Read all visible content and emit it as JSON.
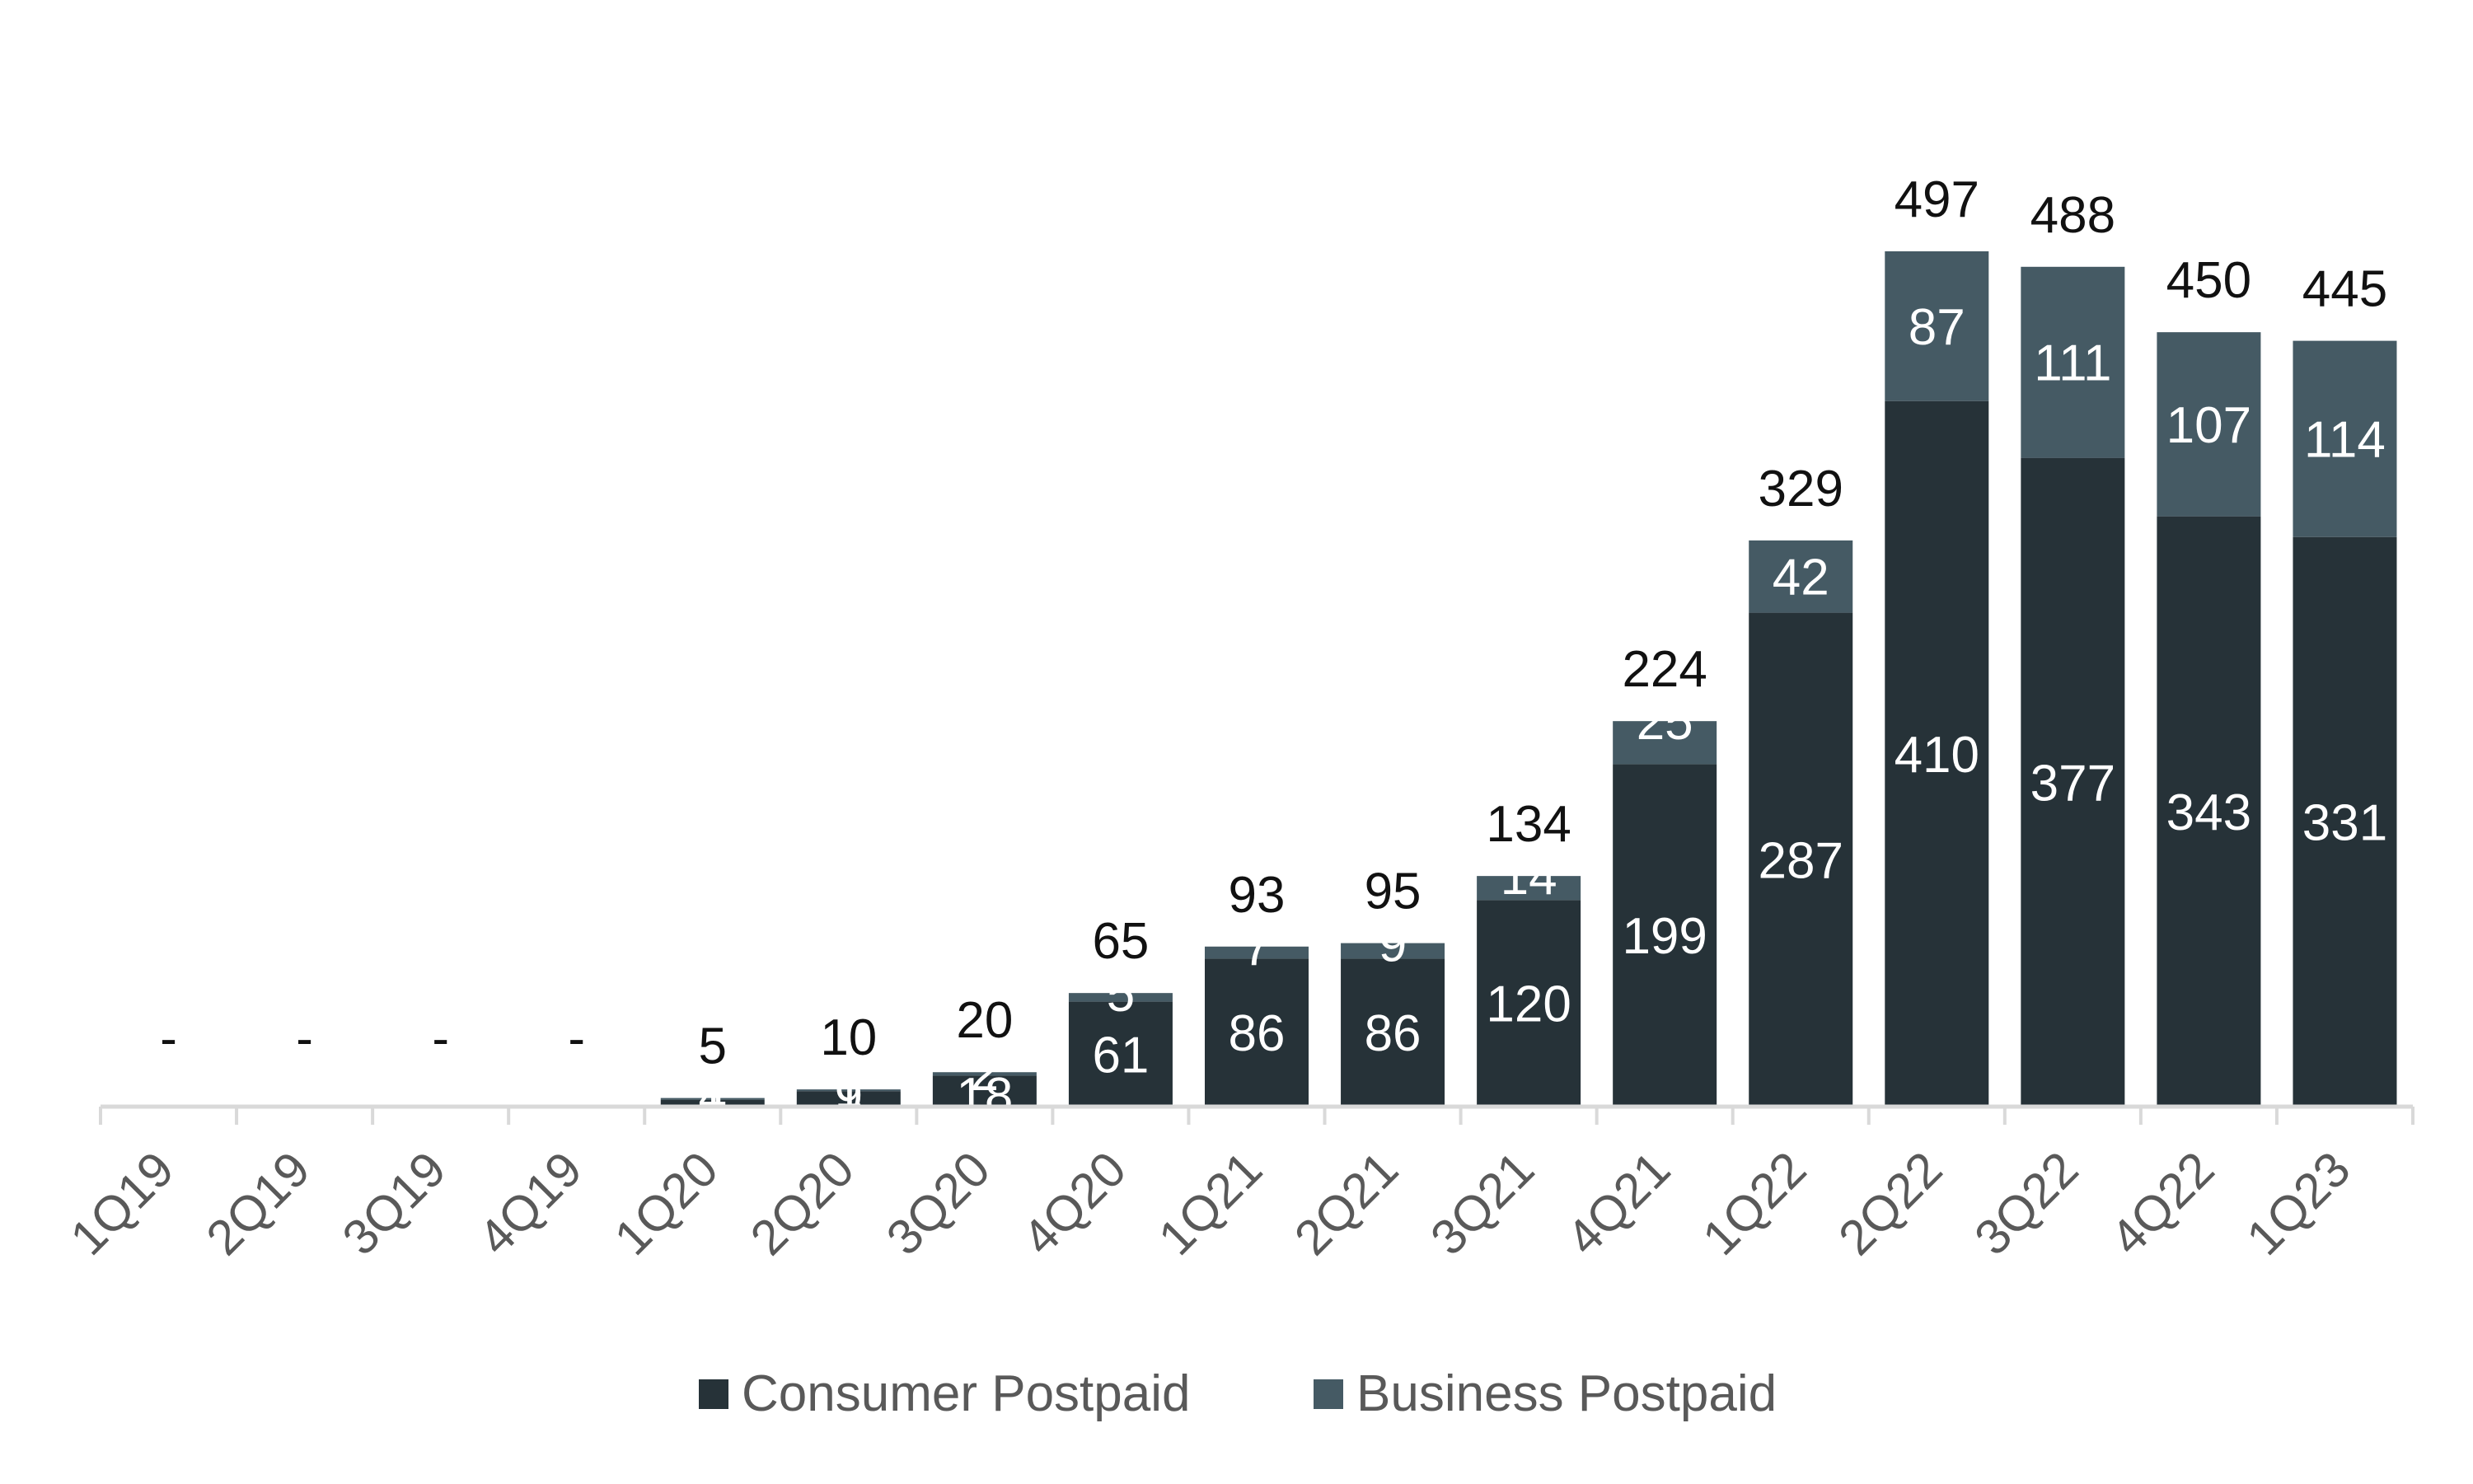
{
  "chart_data": {
    "type": "bar",
    "stacked": true,
    "categories": [
      "1Q19",
      "2Q19",
      "3Q19",
      "4Q19",
      "1Q20",
      "2Q20",
      "3Q20",
      "4Q20",
      "1Q21",
      "2Q21",
      "3Q21",
      "4Q21",
      "1Q22",
      "2Q22",
      "3Q22",
      "4Q22",
      "1Q23"
    ],
    "series": [
      {
        "name": "Consumer Postpaid",
        "color": "#263238",
        "values": [
          0,
          0,
          0,
          0,
          4,
          9,
          18,
          61,
          86,
          86,
          120,
          199,
          287,
          410,
          377,
          343,
          331
        ]
      },
      {
        "name": "Business Postpaid",
        "color": "#455a64",
        "values": [
          0,
          0,
          0,
          0,
          1,
          1,
          2,
          5,
          7,
          9,
          14,
          25,
          42,
          87,
          111,
          107,
          114
        ]
      }
    ],
    "totals": [
      "-",
      "-",
      "-",
      "-",
      "5",
      "10",
      "20",
      "65",
      "93",
      "95",
      "134",
      "224",
      "329",
      "497",
      "488",
      "450",
      "445"
    ],
    "segment_labels": {
      "Consumer Postpaid": [
        "",
        "",
        "",
        "",
        "4",
        "9",
        "18",
        "61",
        "86",
        "86",
        "120",
        "199",
        "287",
        "410",
        "377",
        "343",
        "331"
      ],
      "Business Postpaid": [
        "",
        "",
        "",
        "",
        "1",
        "1",
        "2",
        "5",
        "7",
        "9",
        "14",
        "25",
        "42",
        "87",
        "111",
        "107",
        "114"
      ]
    },
    "title": "",
    "xlabel": "",
    "ylabel": "",
    "ylim": [
      0,
      540
    ],
    "grid": false,
    "legend": "bottom-center",
    "tick_rotation": -45
  }
}
